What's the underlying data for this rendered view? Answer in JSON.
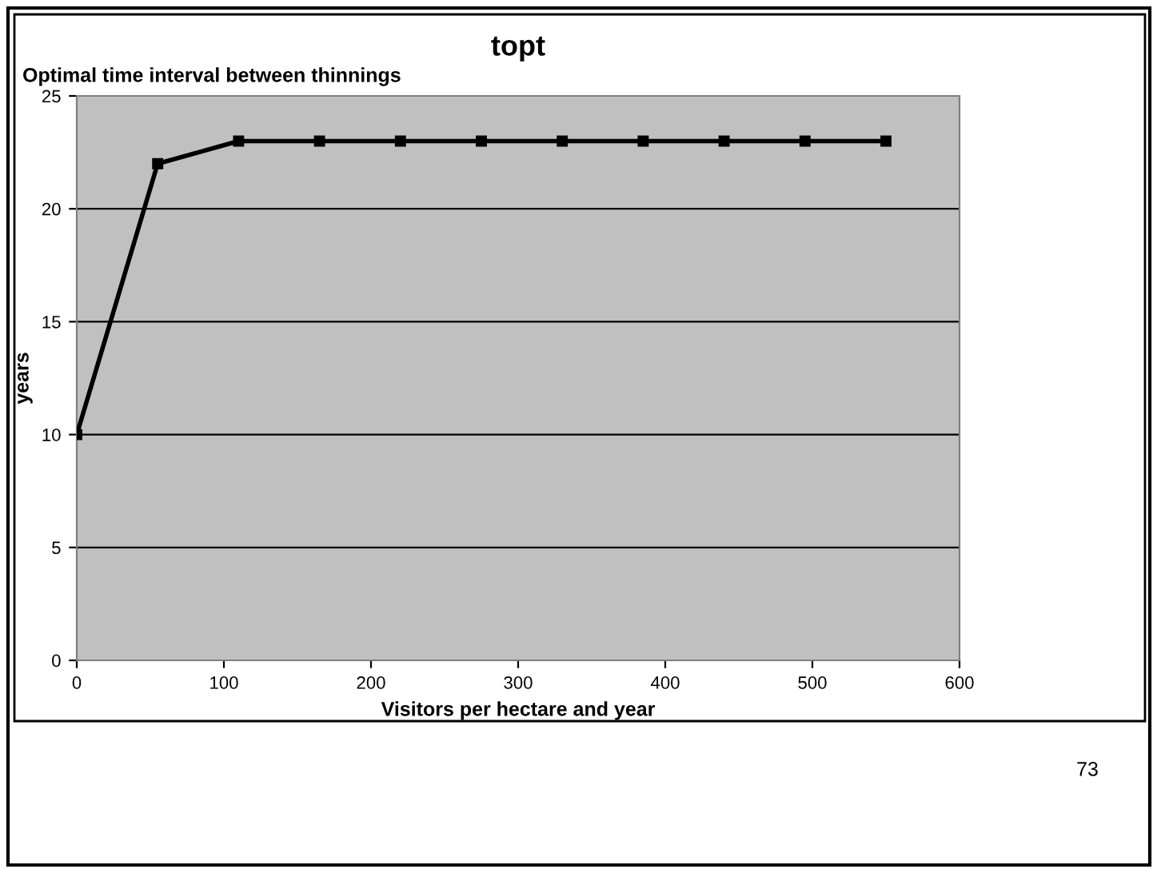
{
  "chart_data": {
    "type": "line",
    "title": "topt",
    "subtitle": "Optimal time interval between thinnings",
    "xlabel": "Visitors per hectare and year",
    "ylabel": "years",
    "x": [
      0,
      55,
      110,
      165,
      220,
      275,
      330,
      385,
      440,
      495,
      550
    ],
    "series": [
      {
        "color": "#000000",
        "values": [
          10,
          22,
          23,
          23,
          23,
          23,
          23,
          23,
          23,
          23,
          23
        ]
      }
    ],
    "xlim": [
      0,
      600
    ],
    "xticks": [
      0,
      100,
      200,
      300,
      400,
      500,
      600
    ],
    "ylim": [
      0,
      25
    ],
    "yticks": [
      0,
      5,
      10,
      15,
      20,
      25
    ],
    "grid": "y",
    "marker": "square",
    "line_style": "solid",
    "legend": false,
    "annotations": [
      "73"
    ]
  }
}
